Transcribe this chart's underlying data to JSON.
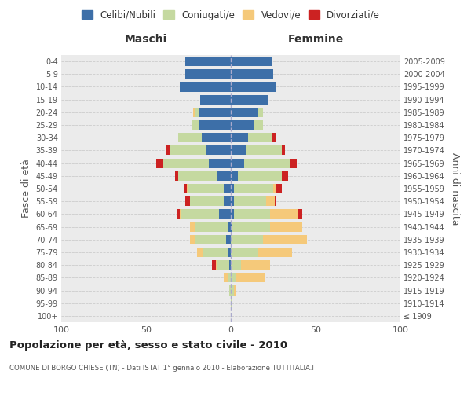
{
  "age_groups": [
    "100+",
    "95-99",
    "90-94",
    "85-89",
    "80-84",
    "75-79",
    "70-74",
    "65-69",
    "60-64",
    "55-59",
    "50-54",
    "45-49",
    "40-44",
    "35-39",
    "30-34",
    "25-29",
    "20-24",
    "15-19",
    "10-14",
    "5-9",
    "0-4"
  ],
  "birth_years": [
    "≤ 1909",
    "1910-1914",
    "1915-1919",
    "1920-1924",
    "1925-1929",
    "1930-1934",
    "1935-1939",
    "1940-1944",
    "1945-1949",
    "1950-1954",
    "1955-1959",
    "1960-1964",
    "1965-1969",
    "1970-1974",
    "1975-1979",
    "1980-1984",
    "1985-1989",
    "1990-1994",
    "1995-1999",
    "2000-2004",
    "2005-2009"
  ],
  "maschi": {
    "celibi": [
      0,
      0,
      0,
      0,
      1,
      2,
      3,
      2,
      7,
      4,
      4,
      8,
      13,
      15,
      17,
      19,
      19,
      18,
      30,
      27,
      27
    ],
    "coniugati": [
      0,
      0,
      1,
      2,
      7,
      14,
      18,
      19,
      22,
      20,
      21,
      23,
      27,
      21,
      14,
      4,
      2,
      0,
      0,
      0,
      0
    ],
    "vedovi": [
      0,
      0,
      0,
      2,
      1,
      4,
      3,
      3,
      1,
      0,
      1,
      0,
      0,
      0,
      0,
      0,
      1,
      0,
      0,
      0,
      0
    ],
    "divorziati": [
      0,
      0,
      0,
      0,
      2,
      0,
      0,
      0,
      2,
      3,
      2,
      2,
      4,
      2,
      0,
      0,
      0,
      0,
      0,
      0,
      0
    ]
  },
  "femmine": {
    "nubili": [
      0,
      0,
      0,
      0,
      0,
      0,
      0,
      1,
      2,
      2,
      2,
      4,
      8,
      9,
      10,
      14,
      16,
      22,
      27,
      25,
      24
    ],
    "coniugate": [
      0,
      1,
      2,
      3,
      6,
      16,
      19,
      22,
      21,
      19,
      23,
      26,
      27,
      21,
      14,
      5,
      3,
      0,
      0,
      0,
      0
    ],
    "vedove": [
      0,
      0,
      1,
      17,
      17,
      20,
      26,
      19,
      17,
      5,
      2,
      0,
      0,
      0,
      0,
      0,
      0,
      0,
      0,
      0,
      0
    ],
    "divorziate": [
      0,
      0,
      0,
      0,
      0,
      0,
      0,
      0,
      2,
      1,
      3,
      4,
      4,
      2,
      3,
      0,
      0,
      0,
      0,
      0,
      0
    ]
  },
  "colors": {
    "celibi": "#3d6fa8",
    "coniugati": "#c5d9a0",
    "vedovi": "#f5c97a",
    "divorziati": "#cc2222"
  },
  "xlim": 100,
  "title_main": "Popolazione per età, sesso e stato civile - 2010",
  "title_sub": "COMUNE DI BORGO CHIESE (TN) - Dati ISTAT 1° gennaio 2010 - Elaborazione TUTTITALIA.IT",
  "ylabel_left": "Fasce di età",
  "ylabel_right": "Anni di nascita",
  "xlabel_maschi": "Maschi",
  "xlabel_femmine": "Femmine",
  "bg_color": "#ebebeb",
  "bar_height": 0.75
}
